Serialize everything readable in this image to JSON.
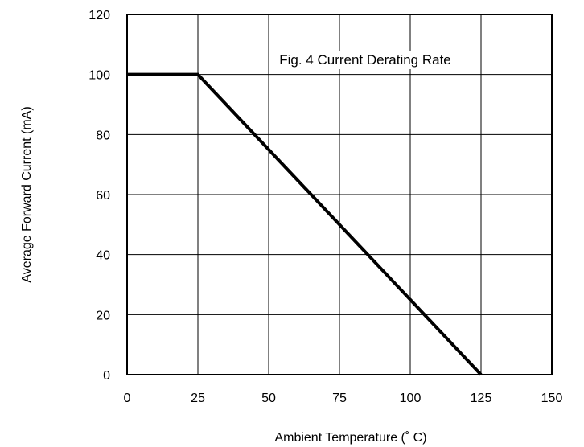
{
  "chart_data": {
    "type": "line",
    "title": "Fig. 4 Current Derating Rate",
    "xlabel": "Ambient Temperature (˚ C)",
    "ylabel": "Average Forward Current (mA)",
    "xlim": [
      0,
      150
    ],
    "ylim": [
      0,
      120
    ],
    "xticks": [
      0,
      25,
      50,
      75,
      100,
      125,
      150
    ],
    "yticks": [
      0,
      20,
      40,
      60,
      80,
      100,
      120
    ],
    "grid": true,
    "series": [
      {
        "x": [
          0,
          25,
          125
        ],
        "y": [
          100,
          100,
          0
        ]
      }
    ],
    "colors": {
      "line": "#000000",
      "grid": "#000000",
      "background": "#ffffff"
    }
  }
}
